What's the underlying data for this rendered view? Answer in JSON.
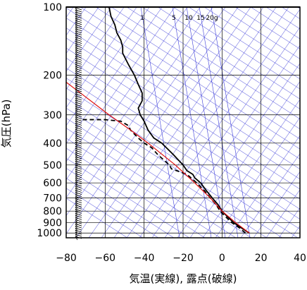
{
  "chart_data": {
    "type": "line",
    "chart_kind": "skew-T log-P thermodynamic diagram",
    "xlabel": "気温(実線), 露点(破線)",
    "ylabel": "気圧(hPa)",
    "xlim": [
      -80,
      40
    ],
    "ylim": [
      1050,
      100
    ],
    "y_scale": "log (pressure decreasing upward)",
    "x_ticks": [
      -80,
      -60,
      -40,
      -20,
      0,
      20,
      40
    ],
    "x_tick_labels": [
      "−80",
      "−60",
      "−40",
      "−20",
      "0",
      "20",
      "40"
    ],
    "y_ticks": [
      1000,
      900,
      800,
      700,
      600,
      500,
      400,
      300,
      200,
      100
    ],
    "y_tick_labels": [
      "1000",
      "900",
      "800",
      "700",
      "600",
      "500",
      "400",
      "300",
      "200",
      "100"
    ],
    "grid": true,
    "mixing_ratio_labels": [
      {
        "text": "1",
        "value": 1
      },
      {
        "text": "5",
        "value": 5
      },
      {
        "text": "10",
        "value": 10
      },
      {
        "text": "15",
        "value": 15
      },
      {
        "text": "20g",
        "value": 20
      }
    ],
    "series": [
      {
        "style": "solid black",
        "points": [
          {
            "p": 1000,
            "t": 14
          },
          {
            "p": 950,
            "t": 10
          },
          {
            "p": 900,
            "t": 6
          },
          {
            "p": 850,
            "t": 3
          },
          {
            "p": 800,
            "t": 0
          },
          {
            "p": 750,
            "t": -2
          },
          {
            "p": 700,
            "t": -5
          },
          {
            "p": 650,
            "t": -8
          },
          {
            "p": 600,
            "t": -11
          },
          {
            "p": 570,
            "t": -14
          },
          {
            "p": 550,
            "t": -15
          },
          {
            "p": 530,
            "t": -18
          },
          {
            "p": 500,
            "t": -20
          },
          {
            "p": 450,
            "t": -25
          },
          {
            "p": 400,
            "t": -31
          },
          {
            "p": 380,
            "t": -35
          },
          {
            "p": 350,
            "t": -38
          },
          {
            "p": 320,
            "t": -40
          },
          {
            "p": 300,
            "t": -42
          },
          {
            "p": 280,
            "t": -43
          },
          {
            "p": 260,
            "t": -41
          },
          {
            "p": 240,
            "t": -41
          },
          {
            "p": 220,
            "t": -43
          },
          {
            "p": 200,
            "t": -45
          },
          {
            "p": 180,
            "t": -48
          },
          {
            "p": 160,
            "t": -51
          },
          {
            "p": 150,
            "t": -51
          },
          {
            "p": 140,
            "t": -52
          },
          {
            "p": 130,
            "t": -54
          },
          {
            "p": 120,
            "t": -55
          },
          {
            "p": 110,
            "t": -57
          },
          {
            "p": 100,
            "t": -58
          }
        ]
      },
      {
        "style": "dashed black",
        "points": [
          {
            "p": 1000,
            "t": 12
          },
          {
            "p": 950,
            "t": 9
          },
          {
            "p": 900,
            "t": 5
          },
          {
            "p": 850,
            "t": 2
          },
          {
            "p": 800,
            "t": -1
          },
          {
            "p": 750,
            "t": -3
          },
          {
            "p": 700,
            "t": -6
          },
          {
            "p": 650,
            "t": -9
          },
          {
            "p": 600,
            "t": -13
          },
          {
            "p": 550,
            "t": -18
          },
          {
            "p": 520,
            "t": -26
          },
          {
            "p": 500,
            "t": -27
          },
          {
            "p": 450,
            "t": -33
          },
          {
            "p": 420,
            "t": -36
          },
          {
            "p": 400,
            "t": -40
          },
          {
            "p": 380,
            "t": -43
          },
          {
            "p": 350,
            "t": -47
          },
          {
            "p": 335,
            "t": -48
          },
          {
            "p": 320,
            "t": -52
          },
          {
            "p": 315,
            "t": -60
          },
          {
            "p": 315,
            "t": -72
          },
          {
            "p": 318,
            "t": -73
          }
        ]
      },
      {
        "style": "solid red",
        "points": [
          {
            "p": 1000,
            "t": 14
          },
          {
            "p": 900,
            "t": 7
          },
          {
            "p": 800,
            "t": 0
          },
          {
            "p": 700,
            "t": -6
          },
          {
            "p": 600,
            "t": -14
          },
          {
            "p": 500,
            "t": -24
          },
          {
            "p": 400,
            "t": -38
          },
          {
            "p": 350,
            "t": -47
          },
          {
            "p": 300,
            "t": -58
          },
          {
            "p": 250,
            "t": -70
          },
          {
            "p": 215,
            "t": -80
          }
        ]
      }
    ]
  }
}
